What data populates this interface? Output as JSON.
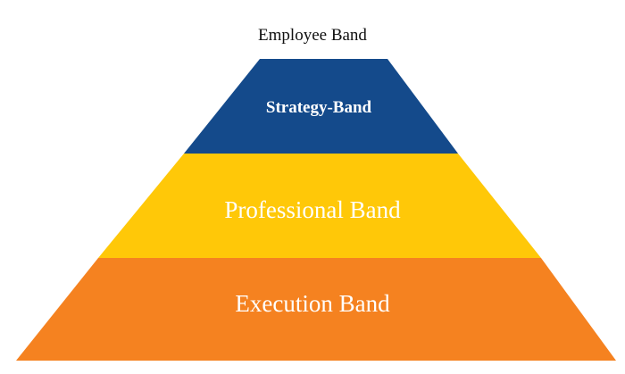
{
  "diagram": {
    "title": "Employee Band",
    "bands": [
      {
        "label": "Strategy-Band",
        "color": "#144A8B",
        "text_color": "#FFFFFF"
      },
      {
        "label": "Professional Band",
        "color": "#FFC808",
        "text_color": "#FFFFFF"
      },
      {
        "label": "Execution Band",
        "color": "#F58220",
        "text_color": "#FFFFFF"
      }
    ]
  }
}
